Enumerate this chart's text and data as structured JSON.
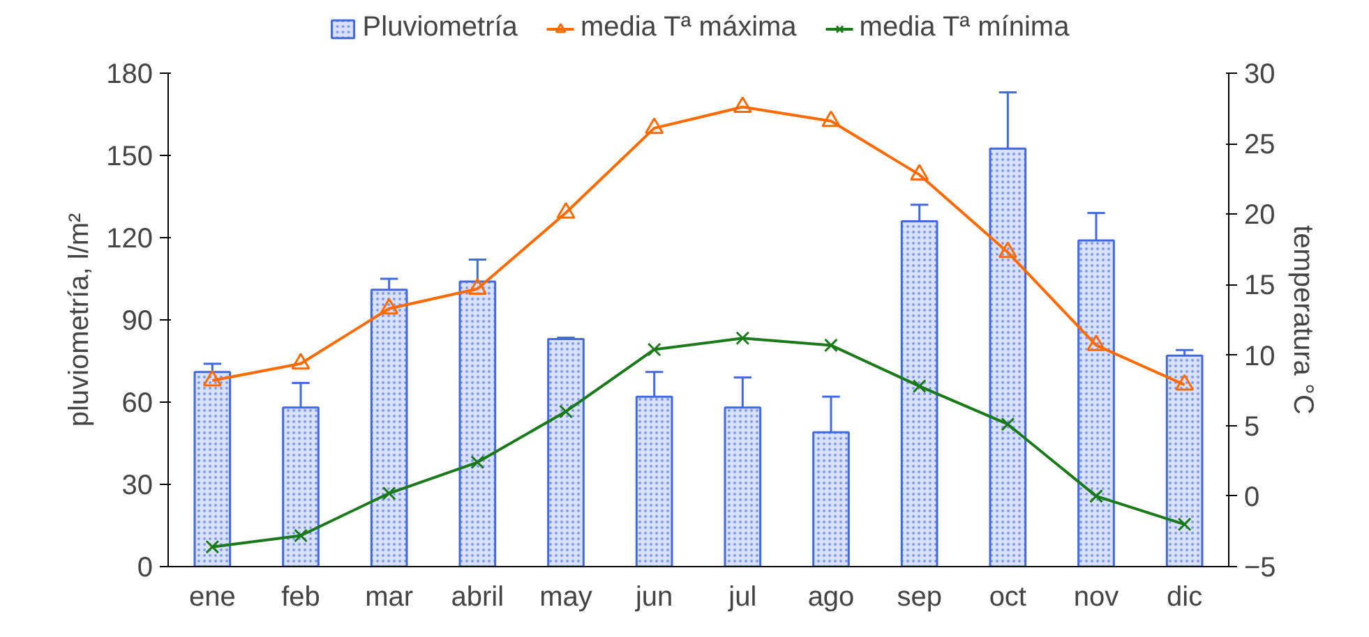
{
  "chart_data": {
    "type": "bar",
    "categories": [
      "ene",
      "feb",
      "mar",
      "abril",
      "may",
      "jun",
      "jul",
      "ago",
      "sep",
      "oct",
      "nov",
      "dic"
    ],
    "ylabel": "pluviometría, l/m²",
    "y2label": "temperatura °C",
    "ylim": [
      0,
      180
    ],
    "yticks": [
      0,
      30,
      60,
      90,
      120,
      150,
      180
    ],
    "y2lim": [
      -5,
      30
    ],
    "y2ticks": [
      -5,
      0,
      5,
      10,
      15,
      20,
      25,
      30
    ],
    "grid": false,
    "legend": "top",
    "series": [
      {
        "name": "Pluviometría",
        "color": "#4169e1",
        "values": [
          71,
          58,
          101,
          104,
          83,
          62,
          58,
          49,
          126,
          152.5,
          119,
          77
        ],
        "errors": [
          [
            71,
            74
          ],
          [
            58,
            67
          ],
          [
            101,
            105
          ],
          [
            104,
            112
          ],
          [
            83,
            83.5
          ],
          [
            62,
            71
          ],
          [
            58,
            69
          ],
          [
            49,
            62
          ],
          [
            126,
            132
          ],
          [
            152.5,
            173
          ],
          [
            119,
            129
          ],
          [
            77,
            79
          ]
        ]
      },
      {
        "name": "media Tª máxima",
        "type": "line",
        "axis": "y2",
        "marker": "triangle",
        "color": "#ff6a00",
        "values": [
          8.2,
          9.4,
          13.3,
          14.7,
          20.1,
          26.1,
          27.6,
          26.6,
          22.8,
          17.3,
          10.7,
          7.9
        ]
      },
      {
        "name": "media Tª mínima",
        "type": "line",
        "axis": "y2",
        "marker": "cross",
        "color": "#1a7a1a",
        "values": [
          -3.6,
          -2.8,
          0.2,
          2.4,
          6.0,
          10.4,
          11.2,
          10.7,
          7.8,
          5.1,
          0,
          -2.0
        ]
      }
    ]
  }
}
